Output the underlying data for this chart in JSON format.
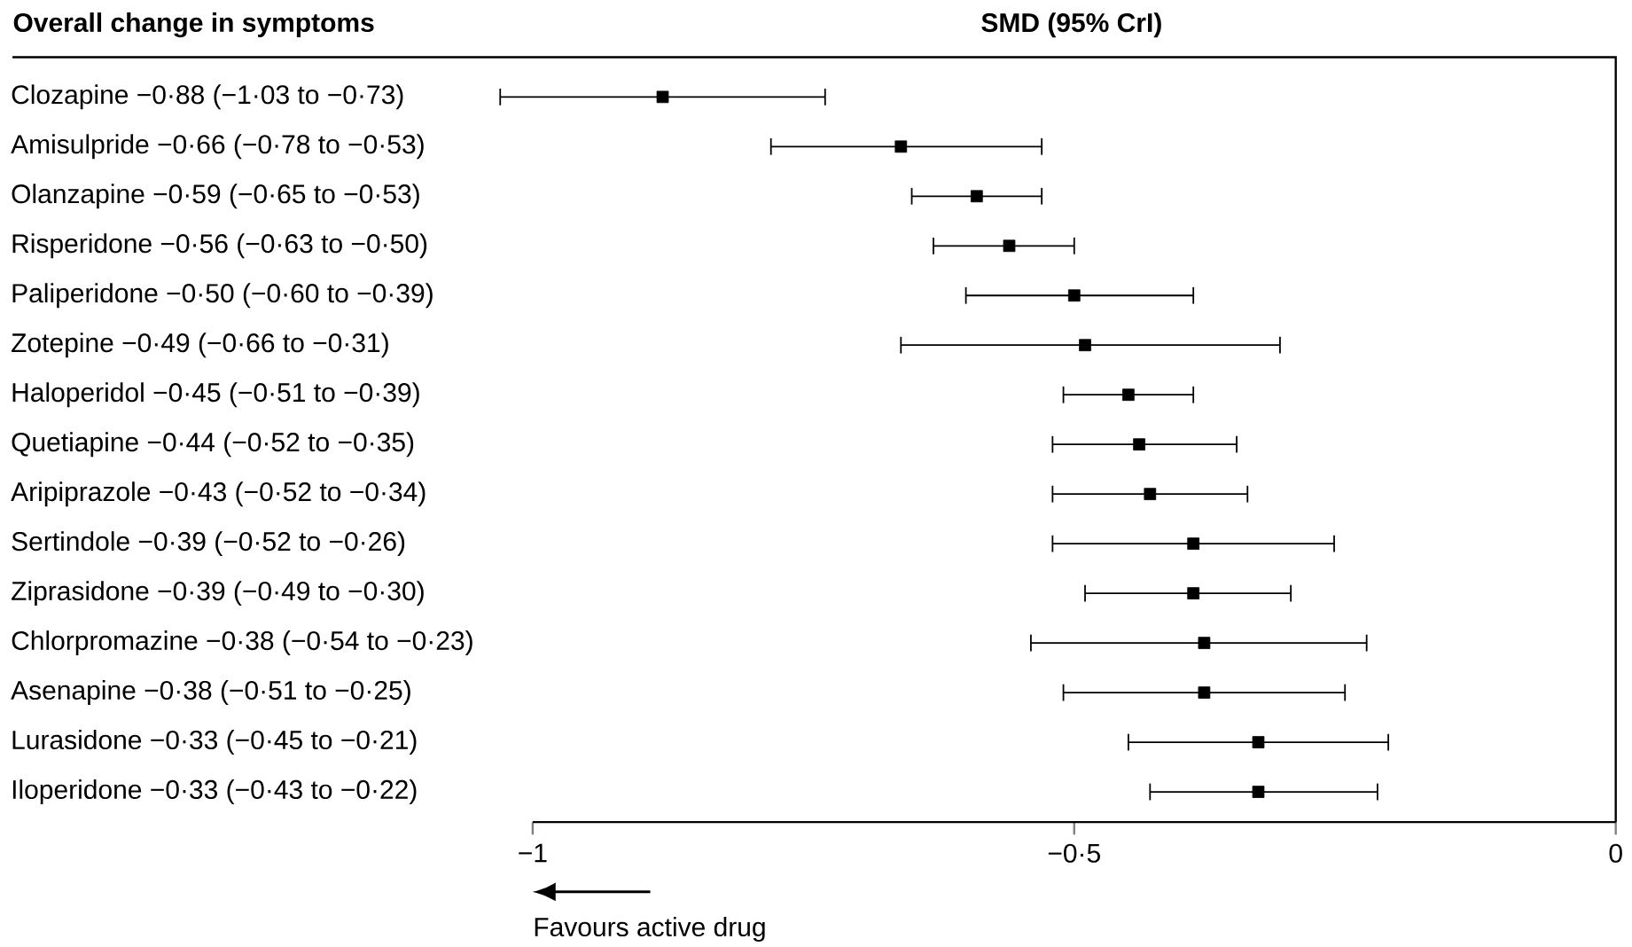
{
  "chart_data": {
    "type": "scatter",
    "orientation": "horizontal",
    "title": "Overall change in symptoms",
    "xlabel": "SMD (95% CrI)",
    "categories": [
      "Clozapine −0·88 (−1·03 to −0·73)",
      "Amisulpride −0·66 (−0·78 to −0·53)",
      "Olanzapine −0·59 (−0·65 to −0·53)",
      "Risperidone −0·56 (−0·63 to −0·50)",
      "Paliperidone −0·50 (−0·60 to −0·39)",
      "Zotepine −0·49 (−0·66 to −0·31)",
      "Haloperidol −0·45 (−0·51 to −0·39)",
      "Quetiapine −0·44 (−0·52 to −0·35)",
      "Aripiprazole −0·43 (−0·52 to −0·34)",
      "Sertindole −0·39 (−0·52 to −0·26)",
      "Ziprasidone −0·39 (−0·49 to −0·30)",
      "Chlorpromazine −0·38 (−0·54 to −0·23)",
      "Asenapine −0·38 (−0·51 to −0·25)",
      "Lurasidone −0·33 (−0·45 to −0·21)",
      "Iloperidone −0·33 (−0·43 to −0·22)"
    ],
    "values": [
      -0.88,
      -0.66,
      -0.59,
      -0.56,
      -0.5,
      -0.49,
      -0.45,
      -0.44,
      -0.43,
      -0.39,
      -0.39,
      -0.38,
      -0.38,
      -0.33,
      -0.33
    ],
    "errors": [
      [
        -1.03,
        -0.73
      ],
      [
        -0.78,
        -0.53
      ],
      [
        -0.65,
        -0.53
      ],
      [
        -0.63,
        -0.5
      ],
      [
        -0.6,
        -0.39
      ],
      [
        -0.66,
        -0.31
      ],
      [
        -0.51,
        -0.39
      ],
      [
        -0.52,
        -0.35
      ],
      [
        -0.52,
        -0.34
      ],
      [
        -0.52,
        -0.26
      ],
      [
        -0.49,
        -0.3
      ],
      [
        -0.54,
        -0.23
      ],
      [
        -0.51,
        -0.25
      ],
      [
        -0.45,
        -0.21
      ],
      [
        -0.43,
        -0.22
      ]
    ],
    "color": "#000000",
    "marker": "square",
    "xlim": [
      -1,
      0
    ],
    "xticks": [
      {
        "value": -1,
        "label": "−1"
      },
      {
        "value": -0.5,
        "label": "−0·5"
      },
      {
        "value": 0,
        "label": "0"
      }
    ],
    "annotations": [
      "Favours active drug"
    ]
  }
}
